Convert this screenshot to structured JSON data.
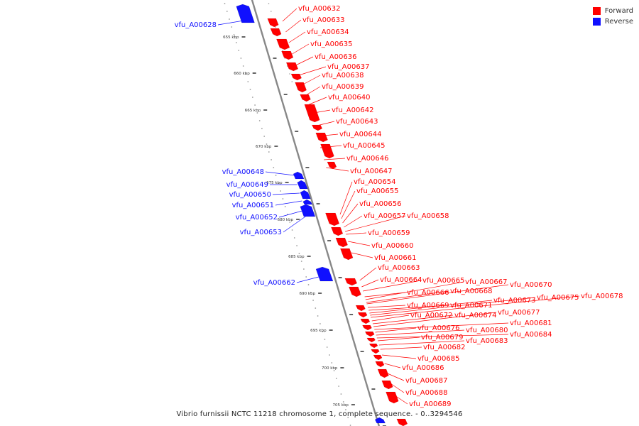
{
  "caption": "Vibrio furnissii NCTC 11218 chromosome 1, complete sequence. - 0..3294546",
  "colors": {
    "forward": "#ff0000",
    "reverse": "#1010ff",
    "backbone": "#888888",
    "dots": "#999999",
    "ticks": "#222222"
  },
  "legend": [
    {
      "label": "Forward",
      "color": "#ff0000"
    },
    {
      "label": "Reverse",
      "color": "#1010ff"
    }
  ],
  "kbp_ticks": [
    "655 kbp",
    "660 kbp",
    "665 kbp",
    "670 kbp",
    "675 kbp",
    "680 kbp",
    "685 kbp",
    "690 kbp",
    "695 kbp",
    "700 kbp",
    "705 kbp"
  ],
  "reverse_genes": [
    "vfu_A00628",
    "vfu_A00648",
    "vfu_A00649",
    "vfu_A00650",
    "vfu_A00651",
    "vfu_A00652",
    "vfu_A00653",
    "vfu_A00662"
  ],
  "forward_genes": [
    "vfu_A00632",
    "vfu_A00633",
    "vfu_A00634",
    "vfu_A00635",
    "vfu_A00636",
    "vfu_A00637",
    "vfu_A00638",
    "vfu_A00639",
    "vfu_A00640",
    "vfu_A00642",
    "vfu_A00643",
    "vfu_A00644",
    "vfu_A00645",
    "vfu_A00646",
    "vfu_A00647",
    "vfu_A00654",
    "vfu_A00655",
    "vfu_A00656",
    "vfu_A00657",
    "vfu_A00658",
    "vfu_A00659",
    "vfu_A00660",
    "vfu_A00661",
    "vfu_A00663",
    "vfu_A00664",
    "vfu_A00665",
    "vfu_A00666",
    "vfu_A00667",
    "vfu_A00668",
    "vfu_A00670",
    "vfu_A00669",
    "vfu_A00671",
    "vfu_A00673",
    "vfu_A00675",
    "vfu_A00678",
    "vfu_A00672",
    "vfu_A00674",
    "vfu_A00677",
    "vfu_A00681",
    "vfu_A00676",
    "vfu_A00680",
    "vfu_A00684",
    "vfu_A00679",
    "vfu_A00683",
    "vfu_A00682",
    "vfu_A00685",
    "vfu_A00686",
    "vfu_A00687",
    "vfu_A00688",
    "vfu_A00689"
  ]
}
